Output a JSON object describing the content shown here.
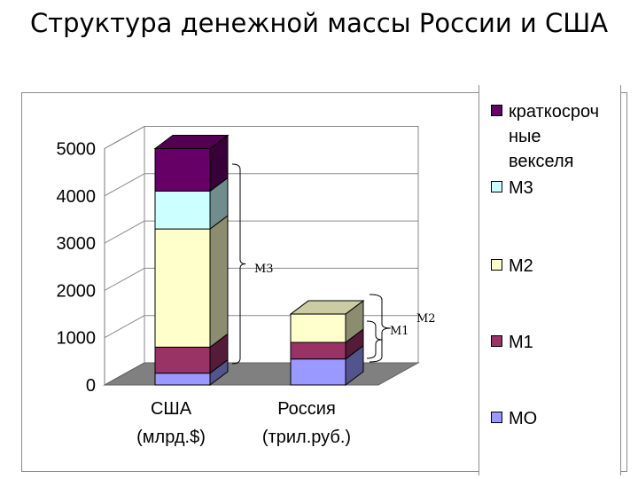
{
  "title": "Структура денежной массы России и США",
  "chart_data": {
    "type": "bar",
    "stacked": true,
    "three_d": true,
    "categories": [
      {
        "line1": "США",
        "line2": "(млрд.$)"
      },
      {
        "line1": "Россия",
        "line2": "(трил.руб.)"
      }
    ],
    "ylim": [
      0,
      5000
    ],
    "yticks": [
      "0",
      "1000",
      "2000",
      "3000",
      "4000",
      "5000"
    ],
    "series": [
      {
        "name": "МО",
        "color": "#9999ff",
        "values": [
          250,
          550
        ]
      },
      {
        "name": "М1",
        "color": "#993366",
        "values": [
          550,
          350
        ]
      },
      {
        "name": "М2",
        "color": "#ffffcc",
        "values": [
          2500,
          600
        ]
      },
      {
        "name": "М3",
        "color": "#ccffff",
        "values": [
          800,
          0
        ]
      },
      {
        "name": "краткосрочные векселя",
        "color": "#660066",
        "values": [
          900,
          0
        ]
      }
    ],
    "legend_position": "right",
    "legend_order_top_to_bottom": [
      "краткосрочные векселя",
      "М3",
      "М2",
      "М1",
      "МО"
    ],
    "annotations": [
      "М3",
      "М2",
      "М1"
    ]
  },
  "legend": [
    {
      "label": "краткосроч\nные\nвекселя",
      "color": "#660066"
    },
    {
      "label": "М3",
      "color": "#ccffff"
    },
    {
      "label": "М2",
      "color": "#ffffcc"
    },
    {
      "label": "М1",
      "color": "#993366"
    },
    {
      "label": "МО",
      "color": "#9999ff"
    }
  ]
}
